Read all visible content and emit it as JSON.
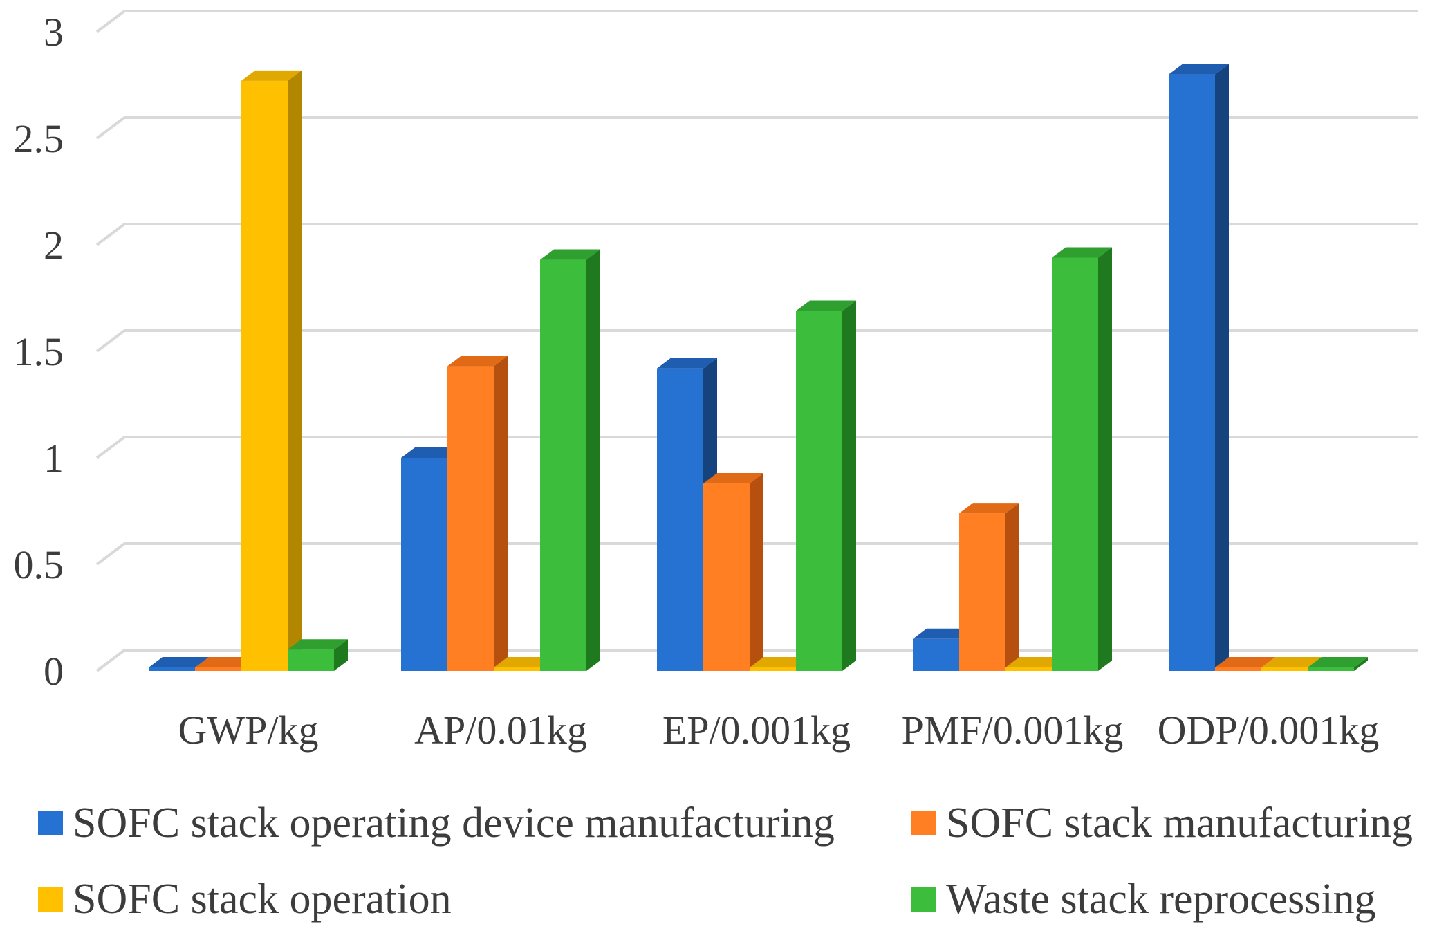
{
  "chart_data": {
    "type": "bar",
    "style": "3d-clustered-column",
    "title": "",
    "xlabel": "",
    "ylabel": "",
    "ylim": [
      0,
      3
    ],
    "yticks": [
      "0",
      "0.5",
      "1",
      "1.5",
      "2",
      "2.5",
      "3"
    ],
    "ytick_values": [
      0,
      0.5,
      1,
      1.5,
      2,
      2.5,
      3
    ],
    "grid": true,
    "legend_position": "bottom",
    "categories": [
      "GWP/kg",
      "AP/0.01kg",
      "EP/0.001kg",
      "PMF/0.001kg",
      "ODP/0.001kg"
    ],
    "series": [
      {
        "name": "SOFC stack operating device manufacturing",
        "color": "#2672D2",
        "side_color": "#15437E",
        "top_color": "#1F5DB0",
        "values": [
          0,
          1.0,
          1.42,
          0.15,
          2.8
        ]
      },
      {
        "name": "SOFC stack manufacturing",
        "color": "#FF7F22",
        "side_color": "#B5500F",
        "top_color": "#E06A15",
        "values": [
          0,
          1.43,
          0.88,
          0.74,
          0
        ]
      },
      {
        "name": "SOFC stack operation",
        "color": "#FFC000",
        "side_color": "#B38600",
        "top_color": "#E0A800",
        "values": [
          2.77,
          0,
          0,
          0,
          0
        ]
      },
      {
        "name": "Waste stack reprocessing",
        "color": "#3CBE3C",
        "side_color": "#1F7A1F",
        "top_color": "#2FA02F",
        "values": [
          0.1,
          1.93,
          1.69,
          1.94,
          0
        ]
      }
    ]
  }
}
